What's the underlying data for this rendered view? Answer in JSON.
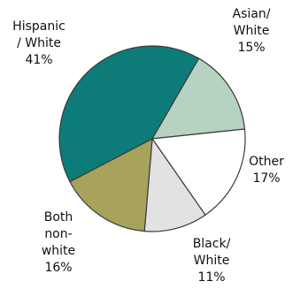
{
  "chart_data": {
    "type": "pie",
    "title": "",
    "start": "top-right, clockwise",
    "slices": [
      {
        "lines": [
          "Asian/",
          "White"
        ],
        "pct_label": "15%",
        "value": 15,
        "color": "#b6d3c2"
      },
      {
        "lines": [
          "Other"
        ],
        "pct_label": "17%",
        "value": 17,
        "color": "#ffffff"
      },
      {
        "lines": [
          "Black/",
          "White"
        ],
        "pct_label": "11%",
        "value": 11,
        "color": "#e2e2e2"
      },
      {
        "lines": [
          "Both",
          "non-",
          "white"
        ],
        "pct_label": "16%",
        "value": 16,
        "color": "#a7a35c"
      },
      {
        "lines": [
          "Hispanic",
          "/ White"
        ],
        "pct_label": "41%",
        "value": 41,
        "color": "#0d7c78"
      }
    ]
  }
}
